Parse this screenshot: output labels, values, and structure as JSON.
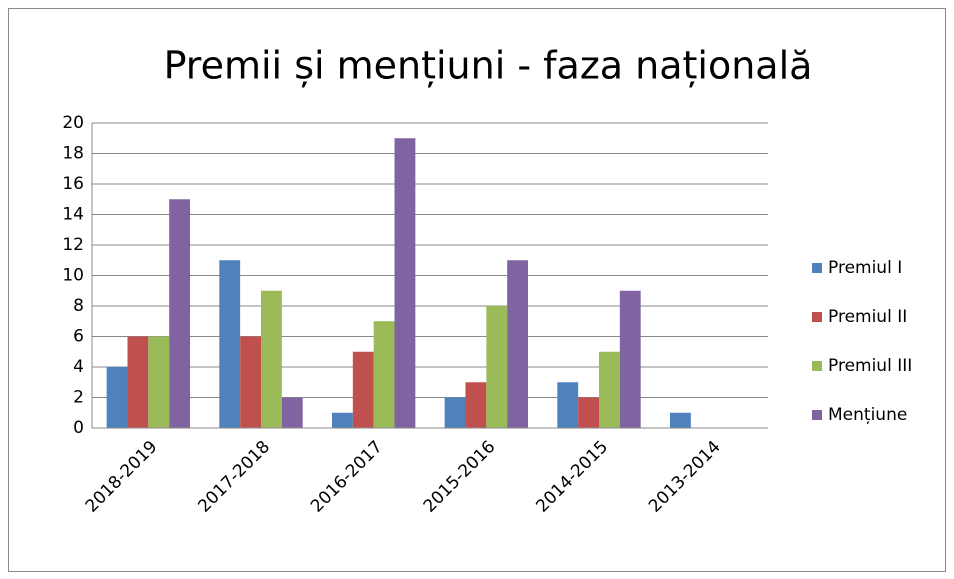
{
  "chart_data": {
    "type": "bar",
    "title": "Premii și mențiuni - faza națională",
    "categories": [
      "2018-2019",
      "2017-2018",
      "2016-2017",
      "2015-2016",
      "2014-2015",
      "2013-2014"
    ],
    "series": [
      {
        "name": "Premiul I",
        "color": "#4f81bd",
        "values": [
          4,
          11,
          1,
          2,
          3,
          1
        ]
      },
      {
        "name": "Premiul II",
        "color": "#c0504d",
        "values": [
          6,
          6,
          5,
          3,
          2,
          0
        ]
      },
      {
        "name": "Premiul III",
        "color": "#9bbb59",
        "values": [
          6,
          9,
          7,
          8,
          5,
          0
        ]
      },
      {
        "name": "Mențiune",
        "color": "#8064a2",
        "values": [
          15,
          2,
          19,
          11,
          9,
          0
        ]
      }
    ],
    "ylim": [
      0,
      20
    ],
    "yticks": [
      0,
      2,
      4,
      6,
      8,
      10,
      12,
      14,
      16,
      18,
      20
    ],
    "grid": true,
    "legend": "right"
  }
}
